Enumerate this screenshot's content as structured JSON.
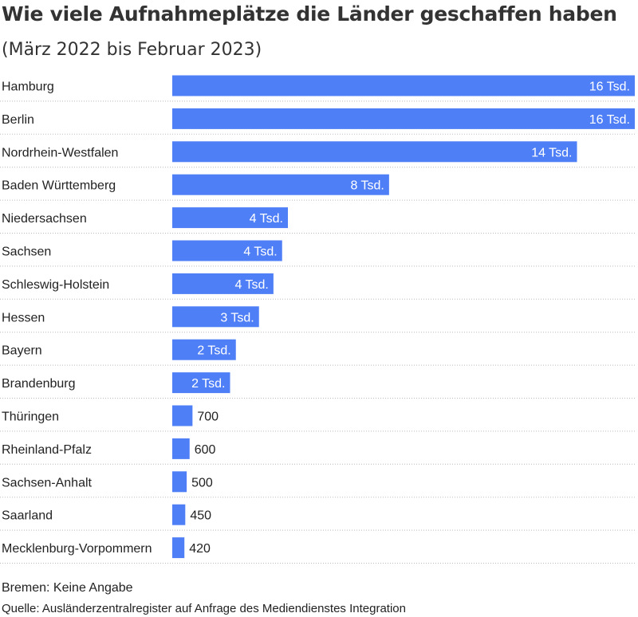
{
  "title": "Wie viele Aufnahmeplätze die Länder geschaffen haben",
  "subtitle": "(März 2022 bis Februar 2023)",
  "note": "Bremen: Keine Angabe",
  "source": "Quelle: Ausländerzentralregister auf Anfrage des Mediendienstes Integration",
  "colors": {
    "bar": "#4f7ff7",
    "label_inside": "#ffffff",
    "label_outside": "#222222",
    "grid": "#bbbbbb"
  },
  "chart_data": {
    "type": "bar",
    "orientation": "horizontal",
    "categories": [
      "Hamburg",
      "Berlin",
      "Nordrhein-Westfalen",
      "Baden Württemberg",
      "Niedersachsen",
      "Sachsen",
      "Schleswig-Holstein",
      "Hessen",
      "Bayern",
      "Brandenburg",
      "Thüringen",
      "Rheinland-Pfalz",
      "Sachsen-Anhalt",
      "Saarland",
      "Mecklenburg-Vorpommern"
    ],
    "values": [
      16000,
      16000,
      14000,
      7500,
      4000,
      3800,
      3500,
      3000,
      2200,
      2000,
      700,
      600,
      500,
      450,
      420
    ],
    "labels": [
      "16 Tsd.",
      "16 Tsd.",
      "14 Tsd.",
      "8 Tsd.",
      "4 Tsd.",
      "4 Tsd.",
      "4 Tsd.",
      "3 Tsd.",
      "2 Tsd.",
      "2 Tsd.",
      "700",
      "600",
      "500",
      "450",
      "420"
    ],
    "xlim": [
      0,
      16000
    ],
    "grid": "dotted row separators",
    "legend": "none"
  }
}
